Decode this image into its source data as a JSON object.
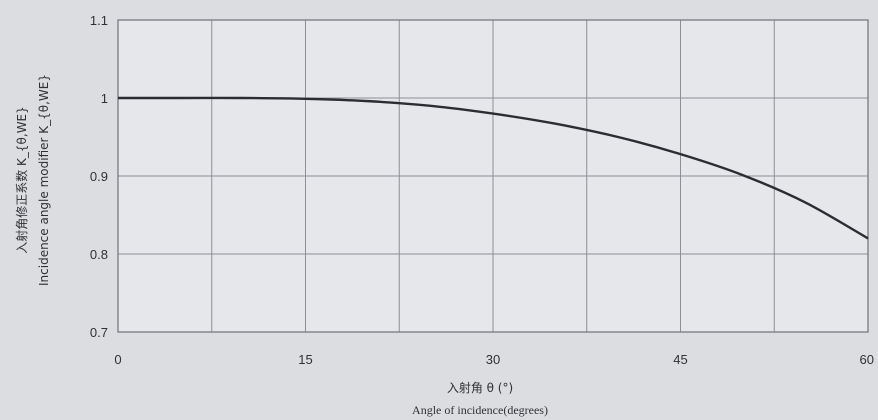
{
  "chart_data": {
    "type": "line",
    "title": "",
    "xlabel": "入射角 θ (°)",
    "xlabel_en": "Angle of incidence(degrees)",
    "ylabel": "入射角修正系数 K_{θ,WE}",
    "ylabel_en": "Incidence angle modifier K_{θ,WE}",
    "xlim": [
      0,
      60
    ],
    "ylim": [
      0.7,
      1.1
    ],
    "x_ticks": [
      0,
      15,
      30,
      45,
      60
    ],
    "x_tick_labels": [
      "0",
      "15",
      "30",
      "45",
      "60"
    ],
    "y_ticks": [
      0.7,
      0.8,
      0.9,
      1.0,
      1.1
    ],
    "y_tick_labels": [
      "0.7",
      "0.8",
      "0.9",
      "1",
      "1.1"
    ],
    "x_gridlines": [
      0,
      7.5,
      15,
      22.5,
      30,
      37.5,
      45,
      52.5,
      60
    ],
    "y_gridlines": [
      0.7,
      0.8,
      0.9,
      1.0,
      1.1
    ],
    "grid": true,
    "series": [
      {
        "x": [
          0,
          5,
          10,
          15,
          20,
          25,
          30,
          35,
          40,
          45,
          50,
          55,
          60
        ],
        "values": [
          1.0,
          1.0,
          1.0,
          0.999,
          0.996,
          0.99,
          0.98,
          0.967,
          0.95,
          0.928,
          0.901,
          0.866,
          0.82
        ]
      }
    ]
  }
}
